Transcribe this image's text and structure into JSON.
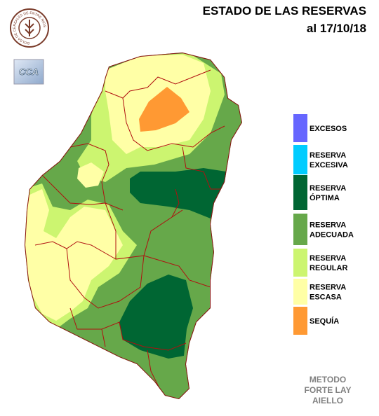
{
  "header": {
    "title": "ESTADO DE LAS RESERVAS",
    "date": "al 17/10/18"
  },
  "logo": {
    "ring_text": "BOLSA DE CEREALES DE ENTRE RIOS",
    "badge": "CCA"
  },
  "legend": {
    "items": [
      {
        "lines": [
          "EXCESOS"
        ],
        "color": "#6666ff"
      },
      {
        "lines": [
          "RESERVA",
          "EXCESIVA"
        ],
        "color": "#00ccff"
      },
      {
        "lines": [
          "RESERVA",
          "ÓPTIMA"
        ],
        "color": "#006633"
      },
      {
        "lines": [
          "RESERVA",
          "ADECUADA"
        ],
        "color": "#66a84a"
      },
      {
        "lines": [
          "RESERVA",
          "REGULAR"
        ],
        "color": "#ccf570"
      },
      {
        "lines": [
          "RESERVA",
          "ESCASA"
        ],
        "color": "#ffffa6"
      },
      {
        "lines": [
          "SEQUÍA"
        ],
        "color": "#ff9933"
      }
    ]
  },
  "method": {
    "lines": [
      "METODO",
      "FORTE LAY",
      "AIELLO"
    ]
  }
}
